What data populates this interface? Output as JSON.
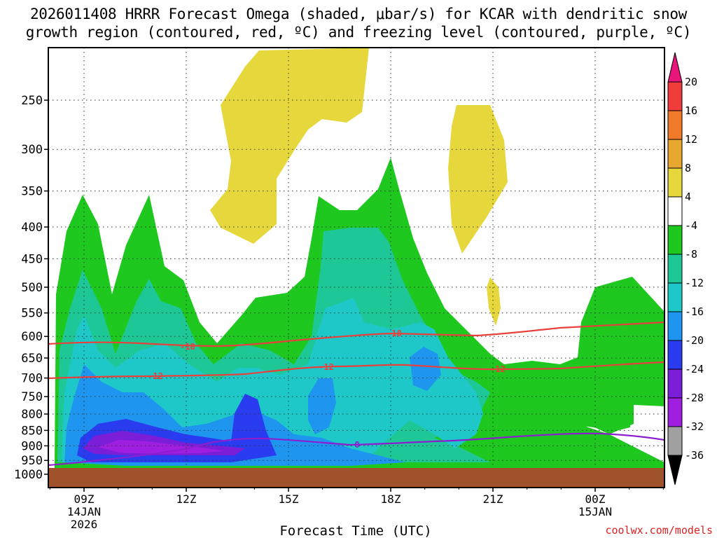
{
  "title_line1": "2026011408 HRRR Forecast Omega (shaded, μbar/s) for KCAR with dendritic snow",
  "title_line2": "growth region (contoured, red, ºC) and freezing level (contoured, purple, ºC)",
  "watermark": "coolwx.com/models",
  "chart_data": {
    "type": "contour",
    "xlabel": "Forecast Time (UTC)",
    "ylabel": "",
    "x_tick_labels": [
      {
        "label": "09Z",
        "sub1": "14JAN",
        "sub2": "2026"
      },
      {
        "label": "12Z",
        "sub1": "",
        "sub2": ""
      },
      {
        "label": "15Z",
        "sub1": "",
        "sub2": ""
      },
      {
        "label": "18Z",
        "sub1": "",
        "sub2": ""
      },
      {
        "label": "21Z",
        "sub1": "",
        "sub2": ""
      },
      {
        "label": "00Z",
        "sub1": "15JAN",
        "sub2": ""
      }
    ],
    "y_tick_labels": [
      "250",
      "300",
      "350",
      "400",
      "450",
      "500",
      "550",
      "600",
      "650",
      "700",
      "750",
      "800",
      "850",
      "900",
      "950",
      "1000"
    ],
    "y_scale": "log-pressure (inverted)",
    "grid": true,
    "colorbar": {
      "labels": [
        "20",
        "16",
        "12",
        "8",
        "4",
        "-4",
        "-8",
        "-12",
        "-16",
        "-20",
        "-24",
        "-28",
        "-32",
        "-36"
      ],
      "colors": [
        "#e8157a",
        "#f03c3c",
        "#f07a2a",
        "#e8a830",
        "#e6d83c",
        "#ffffff",
        "#1ec81e",
        "#1ec896",
        "#1ec8c8",
        "#1e96f0",
        "#2a3cf0",
        "#7a1ed8",
        "#a01ee0",
        "#a0a0a0",
        "#000000"
      ]
    },
    "contours": [
      {
        "name": "dendritic snow growth",
        "color": "#e8403c",
        "levels": [
          "-18",
          "-12"
        ]
      },
      {
        "name": "freezing level",
        "color": "#8c1ed0",
        "levels": [
          "0"
        ]
      }
    ],
    "contour_labels": [
      {
        "text": "-18",
        "color": "#e8403c"
      },
      {
        "text": "-18",
        "color": "#e8403c"
      },
      {
        "text": "-12",
        "color": "#e8403c"
      },
      {
        "text": "-12",
        "color": "#e8403c"
      },
      {
        "text": "-12",
        "color": "#e8403c"
      },
      {
        "text": "0",
        "color": "#8c1ed0"
      }
    ],
    "ground_color": "#a0522d"
  }
}
